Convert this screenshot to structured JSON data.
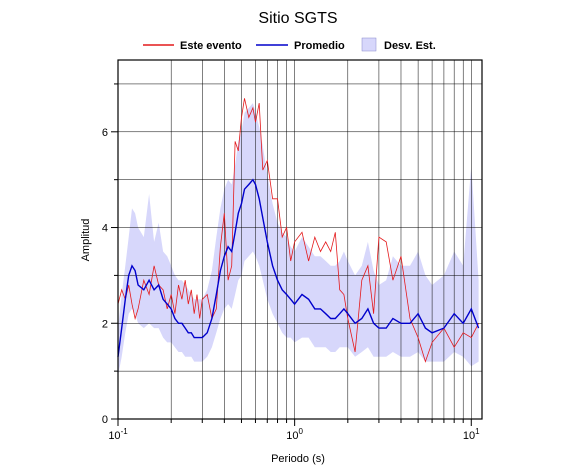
{
  "chart_data": {
    "type": "line",
    "title": "Sitio SGTS",
    "xlabel": "Periodo (s)",
    "ylabel": "Amplitud",
    "xscale": "log",
    "xlim": [
      0.1,
      11.5
    ],
    "ylim": [
      0,
      7.5
    ],
    "grid": true,
    "legend_position": "top-center",
    "legend": {
      "event_label": "Este evento",
      "mean_label": "Promedio",
      "std_label": "Desv. Est."
    },
    "x_ticks": [
      {
        "value": 0.1,
        "base": "10",
        "exp": "-1"
      },
      {
        "value": 1,
        "base": "10",
        "exp": "0"
      },
      {
        "value": 10,
        "base": "10",
        "exp": "1"
      }
    ],
    "y_ticks": [
      {
        "value": 0,
        "label": "0"
      },
      {
        "value": 2,
        "label": "2"
      },
      {
        "value": 4,
        "label": "4"
      },
      {
        "value": 6,
        "label": "6"
      }
    ],
    "colors": {
      "event": "#e41a1c",
      "mean": "#0000cc",
      "std_fill": "#d7d7fb"
    },
    "series": [
      {
        "name": "Este evento",
        "x": [
          0.1,
          0.105,
          0.11,
          0.115,
          0.12,
          0.125,
          0.13,
          0.14,
          0.15,
          0.16,
          0.17,
          0.18,
          0.19,
          0.2,
          0.21,
          0.22,
          0.23,
          0.24,
          0.25,
          0.26,
          0.27,
          0.28,
          0.29,
          0.3,
          0.32,
          0.34,
          0.36,
          0.38,
          0.4,
          0.42,
          0.44,
          0.46,
          0.48,
          0.5,
          0.52,
          0.55,
          0.58,
          0.6,
          0.63,
          0.66,
          0.7,
          0.75,
          0.8,
          0.85,
          0.9,
          0.95,
          1.0,
          1.1,
          1.2,
          1.3,
          1.4,
          1.5,
          1.6,
          1.7,
          1.8,
          1.9,
          2.0,
          2.2,
          2.4,
          2.6,
          2.8,
          3.0,
          3.3,
          3.6,
          4.0,
          4.5,
          5.0,
          5.5,
          6.0,
          7.0,
          8.0,
          9.0,
          10.0,
          11.0
        ],
        "y": [
          2.4,
          2.7,
          2.5,
          2.8,
          2.4,
          2.1,
          2.3,
          2.9,
          2.6,
          3.2,
          2.8,
          2.7,
          2.3,
          2.6,
          2.2,
          2.8,
          2.5,
          2.9,
          2.4,
          2.7,
          2.2,
          2.6,
          2.1,
          2.5,
          2.6,
          2.1,
          2.3,
          3.6,
          4.3,
          2.9,
          3.2,
          5.8,
          5.6,
          6.3,
          6.7,
          6.3,
          6.5,
          6.2,
          6.6,
          5.2,
          5.4,
          4.6,
          4.6,
          3.8,
          4.0,
          3.3,
          3.7,
          3.9,
          3.3,
          3.8,
          3.5,
          3.7,
          3.5,
          3.9,
          2.7,
          2.6,
          2.1,
          1.4,
          2.9,
          3.2,
          2.2,
          3.8,
          3.7,
          2.9,
          3.4,
          2.1,
          1.7,
          1.2,
          1.6,
          1.9,
          1.5,
          1.8,
          1.7,
          2.0
        ]
      },
      {
        "name": "Promedio",
        "x": [
          0.1,
          0.105,
          0.11,
          0.115,
          0.12,
          0.125,
          0.13,
          0.14,
          0.15,
          0.16,
          0.17,
          0.18,
          0.19,
          0.2,
          0.21,
          0.22,
          0.23,
          0.24,
          0.25,
          0.26,
          0.27,
          0.28,
          0.29,
          0.3,
          0.32,
          0.34,
          0.36,
          0.38,
          0.4,
          0.42,
          0.44,
          0.46,
          0.48,
          0.5,
          0.52,
          0.55,
          0.58,
          0.6,
          0.63,
          0.66,
          0.7,
          0.75,
          0.8,
          0.85,
          0.9,
          0.95,
          1.0,
          1.1,
          1.2,
          1.3,
          1.4,
          1.5,
          1.6,
          1.7,
          1.8,
          1.9,
          2.0,
          2.2,
          2.4,
          2.6,
          2.8,
          3.0,
          3.3,
          3.6,
          4.0,
          4.5,
          5.0,
          5.5,
          6.0,
          7.0,
          8.0,
          9.0,
          10.0,
          11.0
        ],
        "y": [
          1.3,
          1.9,
          2.5,
          3.0,
          3.2,
          3.1,
          2.8,
          2.7,
          2.9,
          2.7,
          2.8,
          2.5,
          2.4,
          2.3,
          2.1,
          2.0,
          2.0,
          1.9,
          1.8,
          1.8,
          1.7,
          1.7,
          1.7,
          1.7,
          1.8,
          2.1,
          2.6,
          3.1,
          3.4,
          3.6,
          3.5,
          3.9,
          4.3,
          4.5,
          4.8,
          4.9,
          5.0,
          4.9,
          4.6,
          4.2,
          3.7,
          3.2,
          2.9,
          2.7,
          2.6,
          2.5,
          2.4,
          2.6,
          2.5,
          2.3,
          2.3,
          2.2,
          2.1,
          2.1,
          2.2,
          2.3,
          2.2,
          2.0,
          2.1,
          2.3,
          2.0,
          1.9,
          1.9,
          2.1,
          2.0,
          2.0,
          2.2,
          1.9,
          1.8,
          1.9,
          2.2,
          2.0,
          2.3,
          1.9
        ]
      }
    ],
    "std_band": {
      "x": [
        0.1,
        0.105,
        0.11,
        0.115,
        0.12,
        0.125,
        0.13,
        0.14,
        0.15,
        0.16,
        0.17,
        0.18,
        0.19,
        0.2,
        0.21,
        0.22,
        0.23,
        0.24,
        0.25,
        0.26,
        0.27,
        0.28,
        0.29,
        0.3,
        0.32,
        0.34,
        0.36,
        0.38,
        0.4,
        0.42,
        0.44,
        0.46,
        0.48,
        0.5,
        0.52,
        0.55,
        0.58,
        0.6,
        0.63,
        0.66,
        0.7,
        0.75,
        0.8,
        0.85,
        0.9,
        0.95,
        1.0,
        1.1,
        1.2,
        1.3,
        1.4,
        1.5,
        1.6,
        1.7,
        1.8,
        1.9,
        2.0,
        2.2,
        2.4,
        2.6,
        2.8,
        3.0,
        3.3,
        3.6,
        4.0,
        4.5,
        5.0,
        5.5,
        6.0,
        7.0,
        8.0,
        9.0,
        10.0,
        11.0
      ],
      "upper": [
        1.9,
        2.6,
        3.2,
        3.8,
        4.4,
        4.3,
        4.0,
        3.8,
        4.7,
        3.7,
        4.1,
        3.5,
        3.4,
        3.2,
        3.0,
        2.9,
        2.9,
        2.8,
        2.7,
        2.6,
        2.5,
        2.5,
        2.5,
        2.5,
        2.7,
        3.1,
        3.8,
        4.4,
        4.8,
        5.0,
        4.9,
        5.3,
        5.8,
        6.0,
        6.4,
        6.5,
        6.6,
        6.4,
        6.1,
        5.7,
        5.1,
        4.5,
        4.1,
        3.9,
        3.8,
        3.6,
        3.5,
        3.8,
        3.6,
        3.4,
        3.4,
        3.3,
        3.2,
        3.2,
        3.3,
        3.5,
        3.3,
        3.0,
        3.2,
        3.7,
        3.1,
        2.8,
        2.9,
        3.4,
        3.2,
        3.2,
        3.5,
        3.0,
        2.8,
        3.0,
        3.5,
        3.2,
        5.3,
        2.9
      ],
      "lower": [
        0.9,
        1.3,
        1.8,
        2.2,
        2.3,
        2.2,
        2.0,
        1.9,
        2.0,
        1.9,
        1.9,
        1.7,
        1.6,
        1.6,
        1.5,
        1.4,
        1.4,
        1.3,
        1.3,
        1.3,
        1.2,
        1.2,
        1.2,
        1.2,
        1.3,
        1.5,
        1.8,
        2.1,
        2.3,
        2.4,
        2.3,
        2.6,
        2.9,
        3.0,
        3.3,
        3.4,
        3.5,
        3.4,
        3.2,
        2.9,
        2.5,
        2.2,
        2.0,
        1.8,
        1.7,
        1.7,
        1.6,
        1.7,
        1.7,
        1.5,
        1.5,
        1.5,
        1.4,
        1.4,
        1.5,
        1.5,
        1.5,
        1.3,
        1.4,
        1.5,
        1.3,
        1.3,
        1.3,
        1.4,
        1.3,
        1.3,
        1.4,
        1.2,
        1.2,
        1.2,
        1.4,
        1.3,
        1.1,
        1.2
      ]
    }
  }
}
